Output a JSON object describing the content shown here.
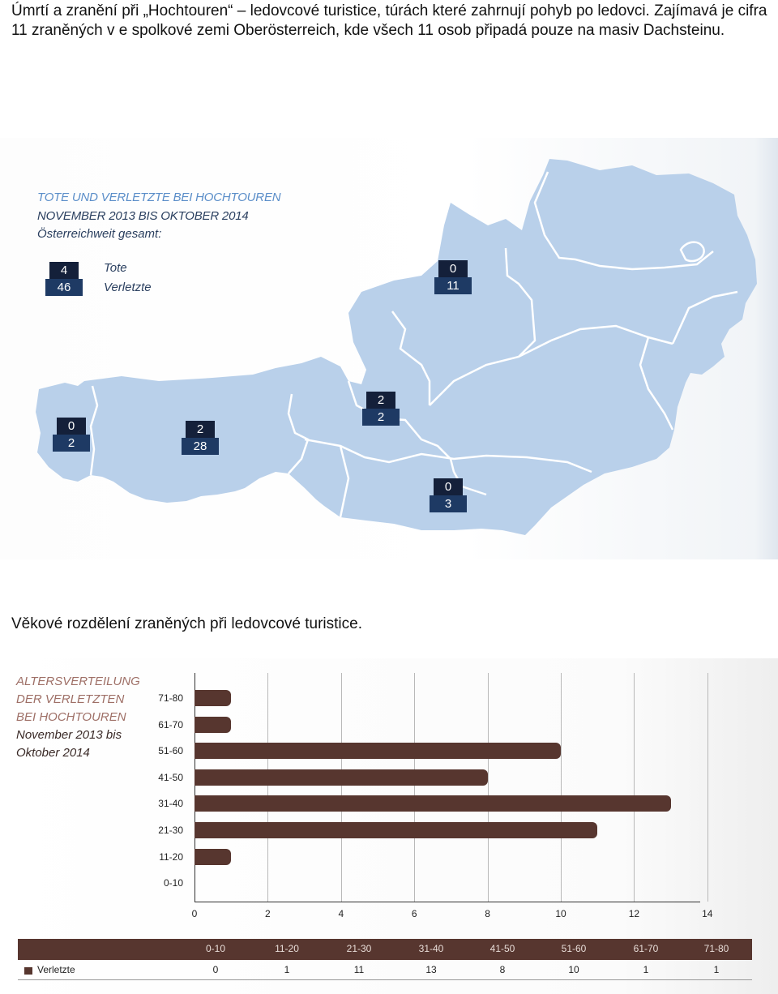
{
  "intro_text": "Úmrtí a zranění při „Hochtouren“ – ledovcové turistice, túrách které zahrnují pohyb po ledovci. Zajímavá je cifra 11 zraněných v e spolkové zemi Oberösterreich, kde všech 11 osob připadá pouze na masiv Dachsteinu.",
  "map": {
    "title_line1": "TOTE UND VERLETZTE BEI HOCHTOUREN",
    "title_line2": "NOVEMBER 2013 BIS OKTOBER 2014",
    "title_line3": "Österreichweit gesamt:",
    "legend": {
      "dead_value": "4",
      "dead_label": "Tote",
      "injured_value": "46",
      "injured_label": "Verletzte"
    },
    "regions": [
      {
        "id": "upper-austria",
        "dead": "0",
        "injured": "11"
      },
      {
        "id": "salzburg",
        "dead": "2",
        "injured": "2"
      },
      {
        "id": "vorarlberg",
        "dead": "0",
        "injured": "2"
      },
      {
        "id": "tyrol",
        "dead": "2",
        "injured": "28"
      },
      {
        "id": "carinthia",
        "dead": "0",
        "injured": "3"
      }
    ],
    "colors": {
      "land": "#b9d0ea",
      "border": "#ffffff",
      "badge_dark": "#14203a",
      "badge_blue": "#1e3a64"
    }
  },
  "caption2": "Věkové rozdělení zraněných při ledovcové turistice.",
  "chart_title": [
    "ALTERSVERTEILUNG",
    "DER VERLETZTEN",
    "BEI HOCHTOUREN",
    "November 2013 bis",
    "Oktober 2014"
  ],
  "chart_data": {
    "type": "bar",
    "orientation": "horizontal",
    "title": "ALTERSVERTEILUNG DER VERLETZTEN BEI HOCHTOUREN November 2013 bis Oktober 2014",
    "categories": [
      "71-80",
      "61-70",
      "51-60",
      "41-50",
      "31-40",
      "21-30",
      "11-20",
      "0-10"
    ],
    "values": [
      1,
      1,
      10,
      8,
      13,
      11,
      1,
      0
    ],
    "xlim": [
      0,
      14
    ],
    "xticks": [
      "0",
      "2",
      "4",
      "6",
      "8",
      "10",
      "12",
      "14"
    ],
    "grid": true,
    "color": "#57362f"
  },
  "table": {
    "headers": [
      "0-10",
      "11-20",
      "21-30",
      "31-40",
      "41-50",
      "51-60",
      "61-70",
      "71-80"
    ],
    "row_label": "Verletzte",
    "values": [
      "0",
      "1",
      "11",
      "13",
      "8",
      "10",
      "1",
      "1"
    ]
  }
}
